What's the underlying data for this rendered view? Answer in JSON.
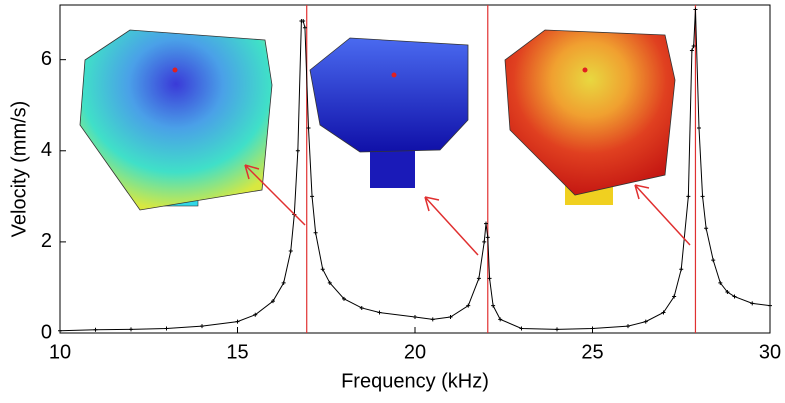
{
  "chart_data": {
    "type": "line",
    "x_label": "Frequency (kHz)",
    "y_label": "Velocity (mm/s)",
    "x": [
      10,
      11,
      12,
      13,
      14,
      15,
      15.5,
      16,
      16.3,
      16.5,
      16.6,
      16.7,
      16.8,
      16.85,
      16.9,
      17.0,
      17.1,
      17.2,
      17.4,
      17.6,
      18,
      18.5,
      19,
      20,
      20.5,
      21,
      21.5,
      21.8,
      21.95,
      22.0,
      22.05,
      22.1,
      22.2,
      22.4,
      23,
      24,
      25,
      26,
      26.5,
      27,
      27.3,
      27.5,
      27.7,
      27.8,
      27.85,
      27.9,
      28.0,
      28.1,
      28.2,
      28.4,
      28.6,
      28.8,
      29,
      29.5,
      30
    ],
    "series": [
      {
        "color": "#000000",
        "values": [
          0.05,
          0.07,
          0.08,
          0.1,
          0.15,
          0.25,
          0.4,
          0.7,
          1.1,
          1.8,
          2.6,
          4,
          6.85,
          6.85,
          6.7,
          4.5,
          3,
          2.2,
          1.4,
          1.1,
          0.75,
          0.55,
          0.45,
          0.35,
          0.3,
          0.35,
          0.6,
          1.2,
          2,
          2.4,
          2.1,
          1.2,
          0.6,
          0.3,
          0.1,
          0.08,
          0.1,
          0.15,
          0.25,
          0.45,
          0.8,
          1.4,
          3,
          6.2,
          6.3,
          7.1,
          4.5,
          3,
          2.3,
          1.6,
          1.1,
          0.9,
          0.8,
          0.65,
          0.6
        ]
      }
    ],
    "vlines": {
      "color": "#e03030",
      "values": [
        16.95,
        22.05,
        27.9
      ]
    },
    "xlim": [
      10,
      30
    ],
    "xticks": [
      10,
      15,
      20,
      25,
      30
    ],
    "ylim": [
      0,
      7.2
    ],
    "yticks": [
      0,
      2,
      4,
      6
    ]
  }
}
